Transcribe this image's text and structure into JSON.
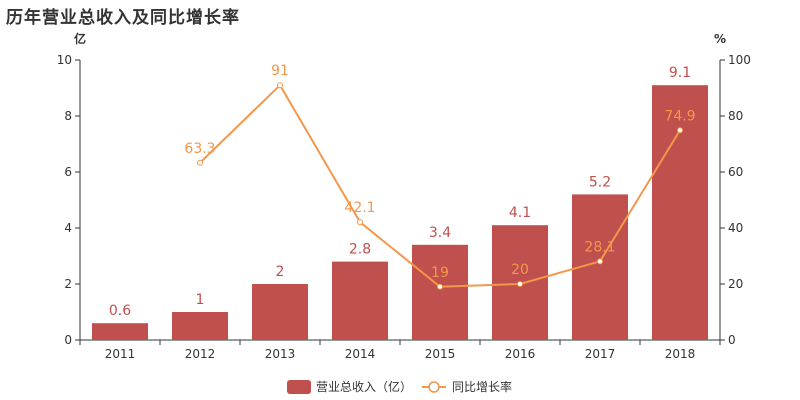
{
  "title": "历年营业总收入及同比增长率",
  "colors": {
    "bar": "#c0504d",
    "line": "#f3974a",
    "axis": "#333333"
  },
  "chart_data": {
    "type": "bar",
    "title": "历年营业总收入及同比增长率",
    "categories": [
      "2011",
      "2012",
      "2013",
      "2014",
      "2015",
      "2016",
      "2017",
      "2018"
    ],
    "y_left": {
      "unit": "亿",
      "ylim": [
        0,
        10
      ],
      "ticks": [
        "0",
        "2",
        "4",
        "6",
        "8",
        "10"
      ]
    },
    "y_right": {
      "unit": "%",
      "ylim": [
        0,
        100
      ],
      "ticks": [
        "0",
        "20",
        "40",
        "60",
        "80",
        "100"
      ]
    },
    "series": [
      {
        "name": "营业总收入（亿）",
        "type": "bar",
        "axis": "left",
        "values": [
          0.6,
          1,
          2,
          2.8,
          3.4,
          4.1,
          5.2,
          9.1
        ],
        "labels": [
          "0.6",
          "1",
          "2",
          "2.8",
          "3.4",
          "4.1",
          "5.2",
          "9.1"
        ]
      },
      {
        "name": "同比增长率",
        "type": "line",
        "axis": "right",
        "values": [
          null,
          63.3,
          91,
          42.1,
          19,
          20,
          28.1,
          74.9
        ],
        "labels": [
          "",
          "63.3",
          "91",
          "42.1",
          "19",
          "20",
          "28.1",
          "74.9"
        ]
      }
    ],
    "grid": false,
    "legend_position": "bottom-center"
  }
}
